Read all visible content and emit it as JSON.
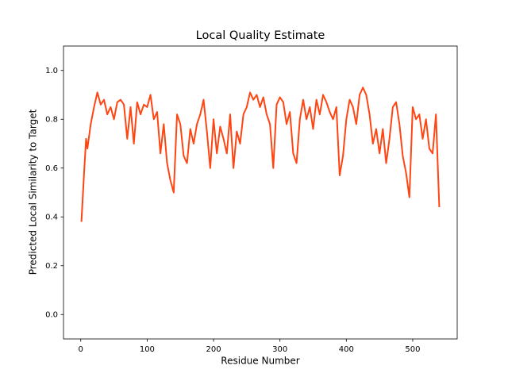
{
  "chart_data": {
    "type": "line",
    "title": "Local Quality Estimate",
    "x_label": "Residue Number",
    "y_label": "Predicted Local Similarity to Target",
    "color": "#ff4512",
    "x": [
      1,
      5,
      8,
      10,
      15,
      20,
      25,
      30,
      35,
      40,
      45,
      50,
      55,
      60,
      65,
      70,
      75,
      80,
      85,
      90,
      95,
      100,
      105,
      110,
      115,
      120,
      125,
      130,
      135,
      140,
      145,
      150,
      155,
      160,
      165,
      170,
      175,
      180,
      185,
      190,
      195,
      200,
      205,
      210,
      215,
      220,
      225,
      230,
      235,
      240,
      245,
      250,
      255,
      260,
      265,
      270,
      275,
      280,
      285,
      290,
      295,
      300,
      305,
      310,
      315,
      320,
      325,
      330,
      335,
      340,
      345,
      350,
      355,
      360,
      365,
      370,
      375,
      380,
      385,
      390,
      395,
      400,
      405,
      410,
      415,
      420,
      425,
      430,
      435,
      440,
      445,
      450,
      455,
      460,
      465,
      470,
      475,
      480,
      485,
      490,
      495,
      500,
      505,
      510,
      515,
      520,
      525,
      530,
      535,
      540
    ],
    "values": [
      0.38,
      0.58,
      0.72,
      0.68,
      0.78,
      0.85,
      0.91,
      0.86,
      0.88,
      0.82,
      0.85,
      0.8,
      0.87,
      0.88,
      0.86,
      0.72,
      0.85,
      0.7,
      0.87,
      0.82,
      0.86,
      0.85,
      0.9,
      0.8,
      0.83,
      0.66,
      0.78,
      0.62,
      0.55,
      0.5,
      0.82,
      0.78,
      0.65,
      0.62,
      0.76,
      0.7,
      0.78,
      0.82,
      0.88,
      0.75,
      0.6,
      0.8,
      0.66,
      0.77,
      0.72,
      0.66,
      0.82,
      0.6,
      0.75,
      0.7,
      0.82,
      0.85,
      0.91,
      0.88,
      0.9,
      0.85,
      0.89,
      0.82,
      0.78,
      0.6,
      0.86,
      0.89,
      0.87,
      0.78,
      0.83,
      0.66,
      0.62,
      0.8,
      0.88,
      0.8,
      0.85,
      0.76,
      0.88,
      0.82,
      0.9,
      0.87,
      0.83,
      0.8,
      0.85,
      0.57,
      0.65,
      0.8,
      0.88,
      0.85,
      0.78,
      0.9,
      0.93,
      0.9,
      0.82,
      0.7,
      0.76,
      0.66,
      0.76,
      0.62,
      0.72,
      0.85,
      0.87,
      0.78,
      0.65,
      0.58,
      0.48,
      0.85,
      0.8,
      0.82,
      0.72,
      0.8,
      0.68,
      0.66,
      0.82,
      0.44
    ],
    "xlim": [
      -26,
      567
    ],
    "ylim": [
      -0.1,
      1.1
    ],
    "xticks": [
      0,
      100,
      200,
      300,
      400,
      500
    ],
    "yticks": [
      {
        "value": 0,
        "label": "0.0"
      },
      0.2,
      0.4,
      0.6,
      0.8,
      {
        "value": 1,
        "label": "1.0"
      }
    ]
  }
}
